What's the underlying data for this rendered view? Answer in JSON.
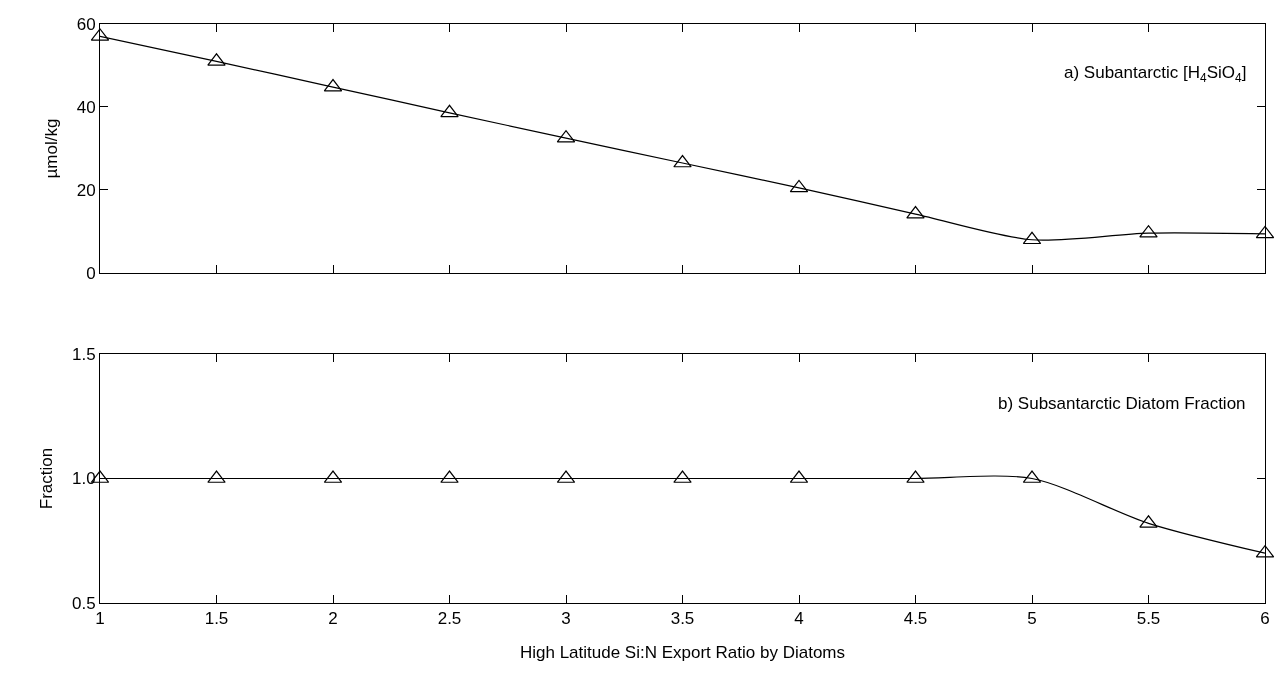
{
  "chart_data": [
    {
      "type": "line",
      "x": [
        1,
        1.5,
        2,
        2.5,
        3,
        3.5,
        4,
        4.5,
        5,
        5.5,
        6
      ],
      "series": [
        {
          "color": "#000000",
          "values": [
            57,
            51,
            44.8,
            38.6,
            32.5,
            26.5,
            20.5,
            14.2,
            8,
            9.6,
            9.4
          ]
        }
      ],
      "ylabel": "µmol/kg",
      "annotations": [
        "a) Subantarctic [H$_{4}$SiO$_{4}$]"
      ],
      "xlim": [
        1,
        6
      ],
      "xticks": [
        1,
        1.5,
        2,
        2.5,
        3,
        3.5,
        4,
        4.5,
        5,
        5.5,
        6
      ],
      "ylim": [
        0,
        60
      ],
      "yticks": [
        0,
        20,
        40,
        60
      ],
      "tick_labels": "y",
      "marker": "triangle",
      "line_style": "solid"
    },
    {
      "type": "line",
      "x": [
        1,
        1.5,
        2,
        2.5,
        3,
        3.5,
        4,
        4.5,
        5,
        5.5,
        6
      ],
      "series": [
        {
          "color": "#000000",
          "values": [
            1,
            1,
            1,
            1,
            1,
            1,
            1,
            1,
            1,
            0.82,
            0.7
          ]
        }
      ],
      "ylabel": "Fraction",
      "xlabel": "High Latitude Si:N Export Ratio by Diatoms",
      "annotations": [
        "b) Subsantarctic Diatom Fraction"
      ],
      "xlim": [
        1,
        6
      ],
      "xticks": [
        1,
        1.5,
        2,
        2.5,
        3,
        3.5,
        4,
        4.5,
        5,
        5.5,
        6
      ],
      "ylim": [
        0.5,
        1.5
      ],
      "yticks": [
        0.5,
        {
          "value": 1,
          "label": "1.0"
        },
        1.5
      ],
      "marker": "triangle",
      "line_style": "solid"
    }
  ]
}
